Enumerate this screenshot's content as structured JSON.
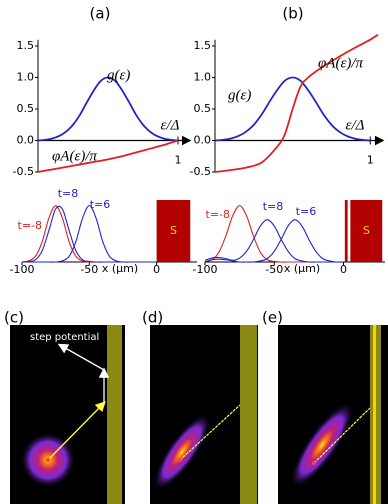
{
  "chart_data": [
    {
      "type": "line",
      "label": "(a)",
      "xlabel": "ε/Δ",
      "xlim": [
        0,
        1.05
      ],
      "ylim": [
        -0.5,
        1.6
      ],
      "xticks": [
        1
      ],
      "yticks": [
        -0.5,
        {
          "value": 0,
          "label": "0.0"
        },
        0.5,
        {
          "value": 1,
          "label": "1.0"
        },
        1.5
      ],
      "series": [
        {
          "name": "g(ε)",
          "color": "#2323c8",
          "x": [
            0,
            0.05,
            0.1,
            0.15,
            0.2,
            0.25,
            0.3,
            0.35,
            0.4,
            0.45,
            0.5,
            0.55,
            0.6,
            0.65,
            0.7,
            0.75,
            0.8,
            0.85,
            0.9,
            0.95,
            1
          ],
          "values": [
            0,
            0.01,
            0.03,
            0.07,
            0.14,
            0.25,
            0.41,
            0.61,
            0.8,
            0.95,
            1,
            0.95,
            0.8,
            0.61,
            0.41,
            0.25,
            0.14,
            0.07,
            0.03,
            0.01,
            0
          ]
        },
        {
          "name": "φA(ε)/π",
          "color": "#e02020",
          "x": [
            0,
            0.1,
            0.2,
            0.3,
            0.4,
            0.5,
            0.6,
            0.7,
            0.8,
            0.9,
            1
          ],
          "values": [
            -0.5,
            -0.46,
            -0.42,
            -0.38,
            -0.34,
            -0.3,
            -0.25,
            -0.19,
            -0.13,
            -0.07,
            0
          ]
        }
      ]
    },
    {
      "type": "line",
      "label": "(b)",
      "xlabel": "ε/Δ",
      "xlim": [
        0,
        1.05
      ],
      "ylim": [
        -0.5,
        1.6
      ],
      "xticks": [
        1
      ],
      "yticks": [
        -0.5,
        {
          "value": 0,
          "label": "0.0"
        },
        0.5,
        {
          "value": 1,
          "label": "1.0"
        },
        1.5
      ],
      "series": [
        {
          "name": "g(ε)",
          "color": "#2323c8",
          "x": [
            0,
            0.05,
            0.1,
            0.15,
            0.2,
            0.25,
            0.3,
            0.35,
            0.4,
            0.45,
            0.5,
            0.55,
            0.6,
            0.65,
            0.7,
            0.75,
            0.8,
            0.85,
            0.9,
            0.95,
            1
          ],
          "values": [
            0,
            0.01,
            0.03,
            0.07,
            0.14,
            0.25,
            0.41,
            0.61,
            0.8,
            0.95,
            1,
            0.95,
            0.8,
            0.61,
            0.41,
            0.25,
            0.14,
            0.07,
            0.03,
            0.01,
            0
          ]
        },
        {
          "name": "φA(ε)/π",
          "color": "#e02020",
          "x": [
            0,
            0.1,
            0.2,
            0.3,
            0.4,
            0.45,
            0.5,
            0.55,
            0.6,
            0.7,
            0.8,
            0.9,
            1,
            1.05
          ],
          "values": [
            -0.5,
            -0.47,
            -0.43,
            -0.35,
            -0.1,
            0.1,
            0.5,
            0.85,
            1,
            1.18,
            1.33,
            1.47,
            1.6,
            1.68
          ]
        }
      ]
    },
    {
      "type": "line",
      "xlabel": "x (μm)",
      "xlim": [
        -100,
        30
      ],
      "ylim": [
        0,
        1.1
      ],
      "xticks": [
        -100,
        -50,
        0
      ],
      "x": [
        -100,
        -95,
        -90,
        -85,
        -80,
        -75,
        -70,
        -65,
        -60,
        -55,
        -50,
        -45,
        -40,
        -35,
        -30,
        -25,
        -20,
        -15,
        -10,
        -5,
        0
      ],
      "barrier": {
        "x": [
          0,
          25
        ],
        "label": "S",
        "color": "#b30000"
      },
      "series": [
        {
          "name": "t=-8",
          "color": "#e02020",
          "values": [
            0,
            0.02,
            0.1,
            0.36,
            0.78,
            1,
            0.78,
            0.36,
            0.1,
            0.02,
            0,
            0,
            0,
            0,
            0,
            0,
            0,
            0,
            0,
            0,
            0
          ]
        },
        {
          "name": "t=8",
          "color": "#2323c8",
          "values": [
            0,
            0.01,
            0.04,
            0.2,
            0.56,
            0.94,
            0.94,
            0.56,
            0.2,
            0.04,
            0.01,
            0,
            0,
            0,
            0,
            0,
            0,
            0,
            0,
            0,
            0
          ]
        },
        {
          "name": "t=6",
          "color": "#2323c8",
          "values": [
            0,
            0,
            0,
            0,
            0,
            0,
            0.02,
            0.1,
            0.36,
            0.78,
            1,
            0.78,
            0.36,
            0.1,
            0.02,
            0,
            0,
            0,
            0,
            0,
            0
          ]
        }
      ]
    },
    {
      "type": "line",
      "xlabel": "x (μm)",
      "xlim": [
        -100,
        30
      ],
      "ylim": [
        0,
        1.1
      ],
      "xticks": [
        -100,
        -50,
        0
      ],
      "x": [
        -100,
        -95,
        -90,
        -85,
        -80,
        -75,
        -70,
        -65,
        -60,
        -55,
        -50,
        -45,
        -40,
        -35,
        -30,
        -25,
        -20,
        -15,
        -10,
        -5,
        0
      ],
      "barrier": {
        "x": [
          5,
          28
        ],
        "label": "S",
        "color": "#b30000"
      },
      "spike": [
        1,
        3
      ],
      "series": [
        {
          "name": "t=-8",
          "color": "#e02020",
          "values": [
            0.01,
            0.04,
            0.17,
            0.46,
            0.82,
            1,
            0.82,
            0.46,
            0.17,
            0.04,
            0.01,
            0,
            0,
            0,
            0,
            0,
            0,
            0,
            0,
            0,
            0
          ]
        },
        {
          "name": "t=8",
          "color": "#2323c8",
          "values": [
            0.03,
            0.07,
            0.08,
            0.06,
            0.03,
            0.07,
            0.19,
            0.4,
            0.64,
            0.75,
            0.64,
            0.4,
            0.19,
            0.06,
            0.02,
            0,
            0,
            0,
            0,
            0,
            0
          ]
        },
        {
          "name": "t=6",
          "color": "#2323c8",
          "values": [
            0,
            0.04,
            0.05,
            0.04,
            0.02,
            0,
            0,
            0,
            0.02,
            0.06,
            0.19,
            0.4,
            0.64,
            0.75,
            0.64,
            0.4,
            0.19,
            0.06,
            0.02,
            0,
            0
          ]
        }
      ]
    }
  ],
  "images": [
    {
      "label": "(c)",
      "annotation": "step potential"
    },
    {
      "label": "(d)"
    },
    {
      "label": "(e)"
    }
  ]
}
